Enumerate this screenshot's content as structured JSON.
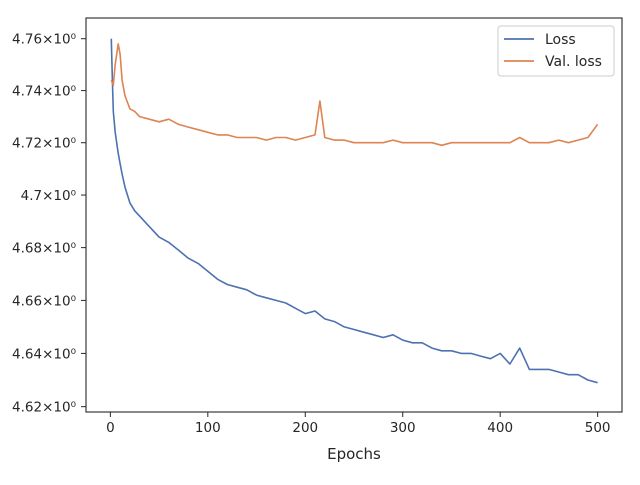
{
  "chart_data": {
    "type": "line",
    "title": "",
    "xlabel": "Epochs",
    "ylabel": "",
    "xlim": [
      -25,
      525
    ],
    "ylim": [
      4.618,
      4.768
    ],
    "yscale": "log",
    "grid": false,
    "legend_position": "top-right",
    "x_ticks": [
      0,
      100,
      200,
      300,
      400,
      500
    ],
    "x_tick_labels": [
      "0",
      "100",
      "200",
      "300",
      "400",
      "500"
    ],
    "y_ticks": [
      4.62,
      4.64,
      4.66,
      4.68,
      4.7,
      4.72,
      4.74,
      4.76
    ],
    "y_tick_labels": [
      "4.62×10⁰",
      "4.64×10⁰",
      "4.66×10⁰",
      "4.68×10⁰",
      "4.7×10⁰",
      "4.72×10⁰",
      "4.74×10⁰",
      "4.76×10⁰"
    ],
    "series": [
      {
        "name": "Loss",
        "color": "#4c72b0",
        "x": [
          1,
          2,
          3,
          5,
          8,
          10,
          12,
          15,
          20,
          25,
          30,
          40,
          50,
          60,
          70,
          80,
          90,
          100,
          110,
          120,
          130,
          140,
          150,
          160,
          170,
          180,
          190,
          200,
          210,
          220,
          230,
          240,
          250,
          260,
          270,
          280,
          290,
          300,
          310,
          320,
          330,
          340,
          350,
          360,
          370,
          380,
          390,
          400,
          410,
          420,
          430,
          440,
          450,
          460,
          470,
          480,
          490,
          500
        ],
        "values": [
          4.76,
          4.745,
          4.732,
          4.724,
          4.716,
          4.712,
          4.708,
          4.703,
          4.697,
          4.694,
          4.692,
          4.688,
          4.684,
          4.682,
          4.679,
          4.676,
          4.674,
          4.671,
          4.668,
          4.666,
          4.665,
          4.664,
          4.662,
          4.661,
          4.66,
          4.659,
          4.657,
          4.655,
          4.656,
          4.653,
          4.652,
          4.65,
          4.649,
          4.648,
          4.647,
          4.646,
          4.647,
          4.645,
          4.644,
          4.644,
          4.642,
          4.641,
          4.641,
          4.64,
          4.64,
          4.639,
          4.638,
          4.64,
          4.636,
          4.642,
          4.634,
          4.634,
          4.634,
          4.633,
          4.632,
          4.632,
          4.63,
          4.629
        ]
      },
      {
        "name": "Val. loss",
        "color": "#dd8452",
        "x": [
          1,
          3,
          5,
          8,
          10,
          12,
          15,
          20,
          25,
          30,
          40,
          50,
          60,
          70,
          80,
          90,
          100,
          110,
          120,
          130,
          140,
          150,
          160,
          170,
          180,
          190,
          200,
          210,
          215,
          220,
          230,
          240,
          250,
          260,
          270,
          280,
          290,
          300,
          310,
          320,
          330,
          340,
          350,
          360,
          370,
          380,
          390,
          400,
          410,
          420,
          430,
          440,
          450,
          460,
          470,
          480,
          490,
          500
        ],
        "values": [
          4.744,
          4.742,
          4.75,
          4.758,
          4.754,
          4.744,
          4.738,
          4.733,
          4.732,
          4.73,
          4.729,
          4.728,
          4.729,
          4.727,
          4.726,
          4.725,
          4.724,
          4.723,
          4.723,
          4.722,
          4.722,
          4.722,
          4.721,
          4.722,
          4.722,
          4.721,
          4.722,
          4.723,
          4.736,
          4.722,
          4.721,
          4.721,
          4.72,
          4.72,
          4.72,
          4.72,
          4.721,
          4.72,
          4.72,
          4.72,
          4.72,
          4.719,
          4.72,
          4.72,
          4.72,
          4.72,
          4.72,
          4.72,
          4.72,
          4.722,
          4.72,
          4.72,
          4.72,
          4.721,
          4.72,
          4.721,
          4.722,
          4.727
        ]
      }
    ]
  }
}
